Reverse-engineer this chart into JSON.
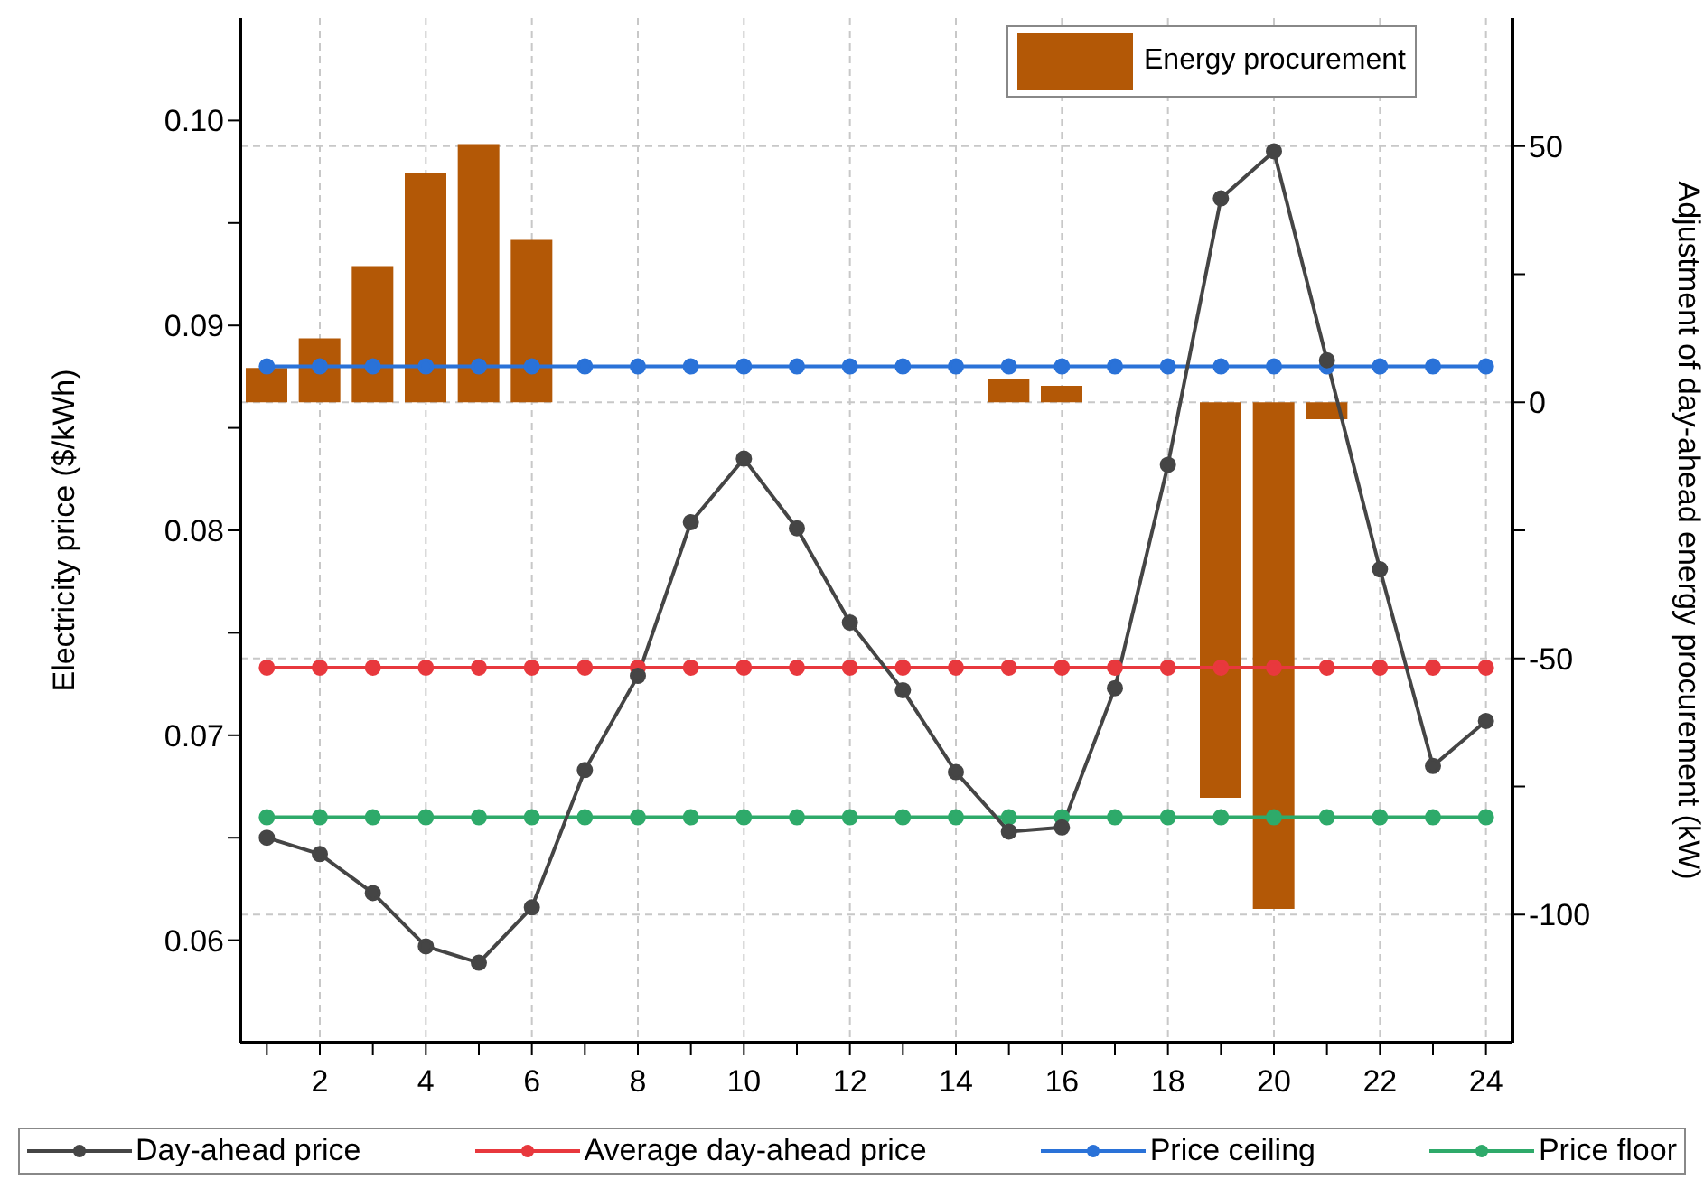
{
  "chart_data": {
    "type": "line",
    "xlabel": null,
    "ylabel": "Electricity price ($/kWh)",
    "y2label": "Adjustment of day-ahead energy procurement (kW)",
    "x": [
      1,
      2,
      3,
      4,
      5,
      6,
      7,
      8,
      9,
      10,
      11,
      12,
      13,
      14,
      15,
      16,
      17,
      18,
      19,
      20,
      21,
      22,
      23,
      24
    ],
    "xlim": [
      0.5,
      24.5
    ],
    "xticks": [
      {
        "value": 1,
        "label": null
      },
      2,
      {
        "value": 3,
        "label": null
      },
      4,
      {
        "value": 5,
        "label": null
      },
      6,
      {
        "value": 7,
        "label": null
      },
      8,
      {
        "value": 9,
        "label": null
      },
      10,
      {
        "value": 11,
        "label": null
      },
      12,
      {
        "value": 13,
        "label": null
      },
      14,
      {
        "value": 15,
        "label": null
      },
      16,
      {
        "value": 17,
        "label": null
      },
      18,
      {
        "value": 19,
        "label": null
      },
      20,
      {
        "value": 21,
        "label": null
      },
      22,
      {
        "value": 23,
        "label": null
      },
      24
    ],
    "ylim": [
      0.055,
      0.105
    ],
    "yticks": [
      0.06,
      {
        "value": 0.065,
        "label": null
      },
      0.07,
      {
        "value": 0.075,
        "label": null
      },
      0.08,
      {
        "value": 0.085,
        "label": null
      },
      0.09,
      {
        "value": 0.095,
        "label": null
      },
      {
        "value": 0.1,
        "label": "0.10"
      }
    ],
    "y2lim": [
      -125,
      75
    ],
    "y2ticks": [
      -100,
      {
        "value": -75,
        "label": null
      },
      -50,
      {
        "value": -25,
        "label": null
      },
      0,
      {
        "value": 25,
        "label": null
      },
      50
    ],
    "grid": true,
    "legend": "bottom",
    "marker": "circle",
    "line_style": "solid",
    "series": [
      {
        "name": "Energy procurement",
        "type": "bar",
        "axis": "y2",
        "color": "#b35806",
        "values": [
          6.7,
          12.5,
          26.6,
          44.8,
          50.4,
          31.7,
          0,
          0,
          0,
          0,
          0,
          0,
          0,
          0,
          4.5,
          3.2,
          0,
          0,
          -77.2,
          -98.9,
          -3.3,
          0,
          0,
          0
        ]
      },
      {
        "name": "Day-ahead price",
        "color": "#454545",
        "values": [
          0.065,
          0.0642,
          0.0623,
          0.0597,
          0.0589,
          0.0616,
          0.0683,
          0.0729,
          0.0804,
          0.0835,
          0.0801,
          0.0755,
          0.0722,
          0.0682,
          0.0653,
          0.0655,
          0.0723,
          0.0832,
          0.0962,
          0.0985,
          0.0883,
          0.0781,
          0.0685,
          0.0707
        ]
      },
      {
        "name": "Average day-ahead price",
        "color": "#e8383d",
        "values": [
          0.0733,
          0.0733,
          0.0733,
          0.0733,
          0.0733,
          0.0733,
          0.0733,
          0.0733,
          0.0733,
          0.0733,
          0.0733,
          0.0733,
          0.0733,
          0.0733,
          0.0733,
          0.0733,
          0.0733,
          0.0733,
          0.0733,
          0.0733,
          0.0733,
          0.0733,
          0.0733,
          0.0733
        ]
      },
      {
        "name": "Price ceiling",
        "color": "#2a72d8",
        "values": [
          0.088,
          0.088,
          0.088,
          0.088,
          0.088,
          0.088,
          0.088,
          0.088,
          0.088,
          0.088,
          0.088,
          0.088,
          0.088,
          0.088,
          0.088,
          0.088,
          0.088,
          0.088,
          0.088,
          0.088,
          0.088,
          0.088,
          0.088,
          0.088
        ]
      },
      {
        "name": "Price floor",
        "color": "#2eaa6a",
        "values": [
          0.066,
          0.066,
          0.066,
          0.066,
          0.066,
          0.066,
          0.066,
          0.066,
          0.066,
          0.066,
          0.066,
          0.066,
          0.066,
          0.066,
          0.066,
          0.066,
          0.066,
          0.066,
          0.066,
          0.066,
          0.066,
          0.066,
          0.066,
          0.066
        ]
      }
    ]
  }
}
